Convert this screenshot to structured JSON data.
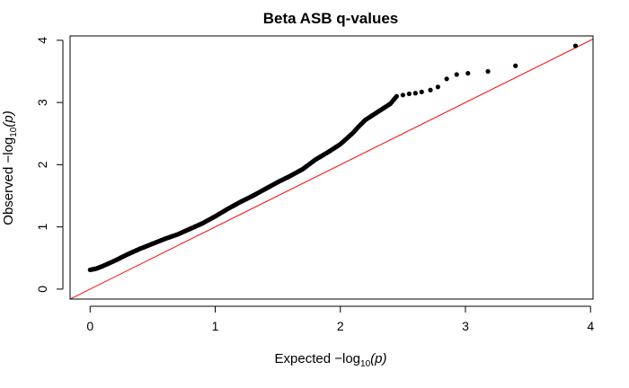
{
  "chart_data": {
    "type": "scatter",
    "title": "Beta ASB q-values",
    "xlabel": {
      "prefix": "Expected  −log",
      "sub": "10",
      "suffix": "(p)"
    },
    "ylabel": {
      "prefix": "Observed  −log",
      "sub": "10",
      "suffix": "(p)"
    },
    "xlim": [
      -0.16,
      4.02
    ],
    "ylim": [
      -0.16,
      4.07
    ],
    "x_ticks": [
      0,
      1,
      2,
      3,
      4
    ],
    "y_ticks": [
      0,
      1,
      2,
      3,
      4
    ],
    "x_tick_labels": [
      "0",
      "1",
      "2",
      "3",
      "4"
    ],
    "y_tick_labels": [
      "0",
      "1",
      "2",
      "3",
      "4"
    ],
    "grid": false,
    "reference_line": {
      "slope": 1,
      "intercept": 0,
      "color": "#ff0000"
    },
    "point_color": "#000000",
    "curve": [
      [
        0.0,
        0.31
      ],
      [
        0.05,
        0.33
      ],
      [
        0.1,
        0.37
      ],
      [
        0.2,
        0.46
      ],
      [
        0.3,
        0.56
      ],
      [
        0.4,
        0.65
      ],
      [
        0.5,
        0.73
      ],
      [
        0.6,
        0.81
      ],
      [
        0.7,
        0.88
      ],
      [
        0.8,
        0.97
      ],
      [
        0.9,
        1.06
      ],
      [
        1.0,
        1.17
      ],
      [
        1.1,
        1.29
      ],
      [
        1.2,
        1.4
      ],
      [
        1.3,
        1.5
      ],
      [
        1.4,
        1.61
      ],
      [
        1.5,
        1.72
      ],
      [
        1.6,
        1.82
      ],
      [
        1.7,
        1.93
      ],
      [
        1.8,
        2.08
      ],
      [
        1.9,
        2.2
      ],
      [
        2.0,
        2.33
      ],
      [
        2.1,
        2.51
      ],
      [
        2.15,
        2.62
      ],
      [
        2.2,
        2.72
      ],
      [
        2.3,
        2.85
      ],
      [
        2.4,
        2.98
      ],
      [
        2.45,
        3.1
      ]
    ],
    "tail_points": [
      [
        2.5,
        3.12
      ],
      [
        2.55,
        3.14
      ],
      [
        2.6,
        3.15
      ],
      [
        2.65,
        3.17
      ],
      [
        2.72,
        3.2
      ],
      [
        2.78,
        3.25
      ],
      [
        2.85,
        3.38
      ],
      [
        2.93,
        3.45
      ],
      [
        3.02,
        3.47
      ],
      [
        3.18,
        3.5
      ],
      [
        3.4,
        3.59
      ],
      [
        3.88,
        3.91
      ]
    ]
  }
}
